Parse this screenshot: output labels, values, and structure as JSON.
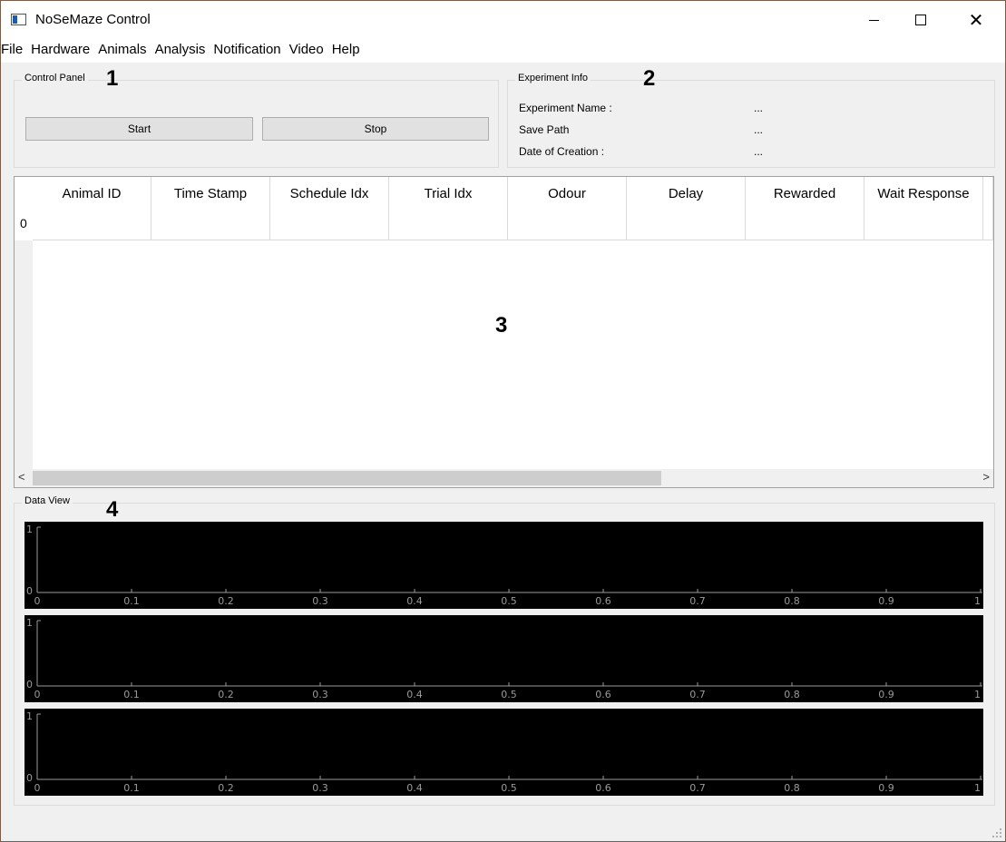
{
  "window": {
    "title": "NoSeMaze Control",
    "minimize_icon": "minimize-icon",
    "maximize_icon": "maximize-icon",
    "close_icon": "close-icon",
    "close_glyph": "✕"
  },
  "menubar": {
    "items": [
      "File",
      "Hardware",
      "Animals",
      "Analysis",
      "Notification",
      "Video",
      "Help"
    ]
  },
  "control_panel": {
    "title": "Control Panel",
    "number": "1",
    "start_label": "Start",
    "stop_label": "Stop"
  },
  "experiment_info": {
    "title": "Experiment Info",
    "number": "2",
    "rows": [
      {
        "label": "Experiment Name :",
        "value": "..."
      },
      {
        "label": "Save Path",
        "value": "..."
      },
      {
        "label": "Date of Creation :",
        "value": "..."
      }
    ]
  },
  "table": {
    "number": "3",
    "columns": [
      "Animal ID",
      "Time Stamp",
      "Schedule Idx",
      "Trial Idx",
      "Odour",
      "Delay",
      "Rewarded",
      "Wait Response"
    ],
    "row_header": "0",
    "scroll_left": "<",
    "scroll_right": ">"
  },
  "data_view": {
    "title": "Data View",
    "number": "4",
    "plots": [
      {
        "y_ticks": [
          "0",
          "1"
        ],
        "x_ticks": [
          "0",
          "0.1",
          "0.2",
          "0.3",
          "0.4",
          "0.5",
          "0.6",
          "0.7",
          "0.8",
          "0.9",
          "1"
        ]
      },
      {
        "y_ticks": [
          "0",
          "1"
        ],
        "x_ticks": [
          "0",
          "0.1",
          "0.2",
          "0.3",
          "0.4",
          "0.5",
          "0.6",
          "0.7",
          "0.8",
          "0.9",
          "1"
        ]
      },
      {
        "y_ticks": [
          "0",
          "1"
        ],
        "x_ticks": [
          "0",
          "0.1",
          "0.2",
          "0.3",
          "0.4",
          "0.5",
          "0.6",
          "0.7",
          "0.8",
          "0.9",
          "1"
        ]
      }
    ],
    "plot_background": "#000000",
    "axis_color": "#9a9a9a"
  }
}
